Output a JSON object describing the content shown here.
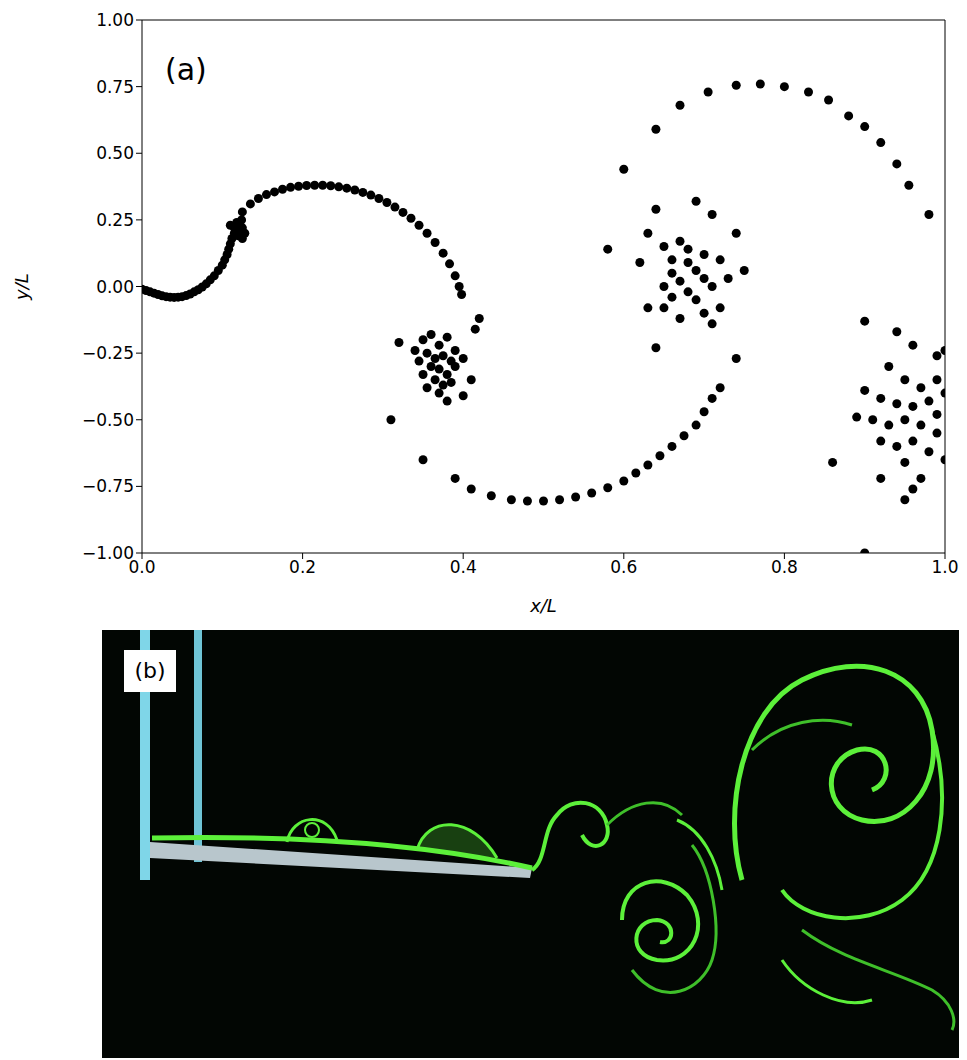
{
  "chart_data": {
    "type": "scatter",
    "annotations": [
      "(a)"
    ],
    "xlabel": "x/L",
    "ylabel": "y/L",
    "color": "#000000",
    "marker": "circle",
    "x": [
      0,
      0.005,
      0.01,
      0.015,
      0.02,
      0.025,
      0.03,
      0.035,
      0.04,
      0.045,
      0.05,
      0.055,
      0.06,
      0.065,
      0.07,
      0.075,
      0.08,
      0.085,
      0.09,
      0.095,
      0.1,
      0.103,
      0.106,
      0.108,
      0.11,
      0.112,
      0.115,
      0.118,
      0.12,
      0.122,
      0.125,
      0.128,
      0.125,
      0.12,
      0.115,
      0.11,
      0.118,
      0.124,
      0.125,
      0.135,
      0.145,
      0.155,
      0.165,
      0.175,
      0.185,
      0.195,
      0.205,
      0.215,
      0.225,
      0.235,
      0.245,
      0.255,
      0.265,
      0.275,
      0.285,
      0.295,
      0.305,
      0.315,
      0.325,
      0.335,
      0.345,
      0.355,
      0.365,
      0.375,
      0.383,
      0.39,
      0.395,
      0.398,
      0.35,
      0.36,
      0.37,
      0.38,
      0.39,
      0.355,
      0.365,
      0.375,
      0.385,
      0.345,
      0.36,
      0.37,
      0.38,
      0.39,
      0.35,
      0.365,
      0.375,
      0.385,
      0.355,
      0.37,
      0.38,
      0.4,
      0.41,
      0.4,
      0.34,
      0.32,
      0.31,
      0.42,
      0.415,
      0.35,
      0.39,
      0.41,
      0.435,
      0.46,
      0.48,
      0.5,
      0.52,
      0.54,
      0.56,
      0.58,
      0.6,
      0.615,
      0.63,
      0.645,
      0.66,
      0.675,
      0.69,
      0.7,
      0.71,
      0.72,
      0.74,
      0.64,
      0.69,
      0.71,
      0.74,
      0.63,
      0.65,
      0.67,
      0.68,
      0.7,
      0.66,
      0.68,
      0.69,
      0.66,
      0.67,
      0.65,
      0.7,
      0.71,
      0.68,
      0.66,
      0.69,
      0.72,
      0.65,
      0.67,
      0.7,
      0.71,
      0.63,
      0.64,
      0.73,
      0.75,
      0.58,
      0.62,
      0.72,
      0.6,
      0.64,
      0.67,
      0.705,
      0.74,
      0.77,
      0.8,
      0.83,
      0.855,
      0.88,
      0.9,
      0.92,
      0.94,
      0.955,
      0.98,
      0.9,
      0.94,
      0.96,
      0.99,
      1.0,
      0.93,
      0.95,
      0.97,
      0.99,
      0.9,
      0.92,
      0.94,
      0.96,
      0.98,
      1.0,
      0.89,
      0.91,
      0.93,
      0.95,
      0.97,
      0.99,
      0.92,
      0.94,
      0.96,
      0.98,
      0.95,
      0.97,
      0.92,
      0.95,
      0.96,
      0.86,
      0.9,
      1.0,
      0.99
    ],
    "values": [
      -0.01,
      -0.015,
      -0.02,
      -0.025,
      -0.03,
      -0.035,
      -0.038,
      -0.04,
      -0.041,
      -0.04,
      -0.038,
      -0.034,
      -0.028,
      -0.02,
      -0.012,
      -0.002,
      0.01,
      0.025,
      0.04,
      0.06,
      0.08,
      0.1,
      0.12,
      0.14,
      0.16,
      0.18,
      0.2,
      0.21,
      0.22,
      0.23,
      0.22,
      0.2,
      0.18,
      0.19,
      0.22,
      0.23,
      0.24,
      0.25,
      0.28,
      0.31,
      0.33,
      0.345,
      0.355,
      0.365,
      0.372,
      0.376,
      0.379,
      0.38,
      0.38,
      0.378,
      0.374,
      0.369,
      0.362,
      0.353,
      0.343,
      0.33,
      0.315,
      0.298,
      0.278,
      0.256,
      0.23,
      0.2,
      0.165,
      0.125,
      0.085,
      0.04,
      0,
      -0.03,
      -0.2,
      -0.18,
      -0.22,
      -0.19,
      -0.24,
      -0.25,
      -0.27,
      -0.26,
      -0.28,
      -0.28,
      -0.3,
      -0.31,
      -0.33,
      -0.3,
      -0.33,
      -0.35,
      -0.37,
      -0.36,
      -0.38,
      -0.4,
      -0.43,
      -0.27,
      -0.35,
      -0.41,
      -0.24,
      -0.21,
      -0.5,
      -0.12,
      -0.16,
      -0.65,
      -0.72,
      -0.76,
      -0.785,
      -0.8,
      -0.805,
      -0.805,
      -0.8,
      -0.79,
      -0.775,
      -0.755,
      -0.73,
      -0.7,
      -0.67,
      -0.635,
      -0.6,
      -0.56,
      -0.52,
      -0.47,
      -0.42,
      -0.38,
      -0.27,
      0.29,
      0.32,
      0.27,
      0.2,
      0.2,
      0.15,
      0.17,
      0.14,
      0.12,
      0.1,
      0.09,
      0.06,
      0.05,
      0.02,
      0,
      0.03,
      0,
      -0.02,
      -0.04,
      -0.05,
      -0.08,
      -0.08,
      -0.12,
      -0.1,
      -0.14,
      -0.08,
      -0.23,
      0.03,
      0.06,
      0.14,
      0.09,
      0.1,
      0.44,
      0.59,
      0.68,
      0.73,
      0.755,
      0.76,
      0.75,
      0.73,
      0.7,
      0.64,
      0.6,
      0.54,
      0.46,
      0.38,
      0.27,
      -0.13,
      -0.17,
      -0.22,
      -0.26,
      -0.24,
      -0.3,
      -0.35,
      -0.38,
      -0.35,
      -0.39,
      -0.42,
      -0.44,
      -0.45,
      -0.43,
      -0.4,
      -0.49,
      -0.5,
      -0.52,
      -0.5,
      -0.52,
      -0.55,
      -0.58,
      -0.6,
      -0.58,
      -0.62,
      -0.66,
      -0.72,
      -0.72,
      -0.8,
      -0.76,
      -0.66,
      -1.0,
      -0.65,
      -0.48
    ],
    "xlim": [
      0,
      1
    ],
    "ylim": [
      -1,
      1
    ],
    "xticks": [
      {
        "value": 0,
        "label": "0.0"
      },
      {
        "value": 0.2,
        "label": "0.2"
      },
      {
        "value": 0.4,
        "label": "0.4"
      },
      {
        "value": 0.6,
        "label": "0.6"
      },
      {
        "value": 0.8,
        "label": "0.8"
      },
      {
        "value": 1,
        "label": "1.0"
      }
    ],
    "yticks": [
      {
        "value": -1,
        "label": "−1.00"
      },
      {
        "value": -0.75,
        "label": "−0.75"
      },
      {
        "value": -0.5,
        "label": "−0.50"
      },
      {
        "value": -0.25,
        "label": "−0.25"
      },
      {
        "value": 0,
        "label": "0.00"
      },
      {
        "value": 0.25,
        "label": "0.25"
      },
      {
        "value": 0.5,
        "label": "0.50"
      },
      {
        "value": 0.75,
        "label": "0.75"
      },
      {
        "value": 1,
        "label": "1.00"
      }
    ]
  },
  "photo": {
    "label": "(b)"
  }
}
